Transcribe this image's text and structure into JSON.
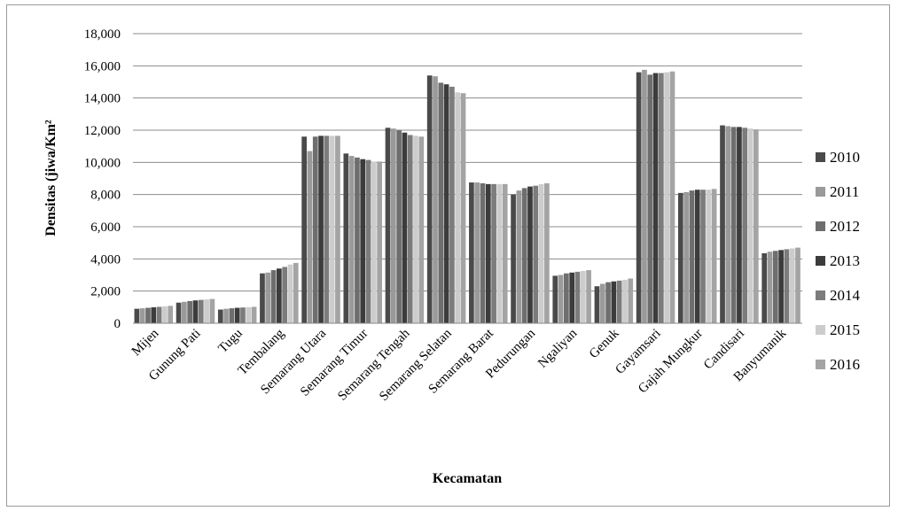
{
  "chart_data": {
    "type": "bar",
    "xlabel": "Kecamatan",
    "ylabel": "Densitas (jiwa/Km²",
    "ylim": [
      0,
      18000
    ],
    "yticks": [
      "0",
      "2,000",
      "4,000",
      "6,000",
      "8,000",
      "10,000",
      "12,000",
      "14,000",
      "16,000",
      "18,000"
    ],
    "grid": true,
    "legend_position": "right",
    "categories": [
      "Mijen",
      "Gunung Pati",
      "Tugu",
      "Tembalang",
      "Semarang Utara",
      "Semarang Timur",
      "Semarang Tengah",
      "Semarang Selatan",
      "Semarang Barat",
      "Pedurungan",
      "Ngaliyan",
      "Genuk",
      "Gayamsari",
      "Gajah Mungkur",
      "Candisari",
      "Banyumanik"
    ],
    "series": [
      {
        "name": "2010",
        "color": "#4a4a4a",
        "values": [
          900,
          1280,
          850,
          3100,
          11600,
          10550,
          12150,
          15400,
          8750,
          8000,
          2950,
          2300,
          15600,
          8100,
          12300,
          4350
        ]
      },
      {
        "name": "2011",
        "color": "#9a9a9a",
        "values": [
          930,
          1330,
          900,
          3150,
          10700,
          10400,
          12100,
          15350,
          8750,
          8250,
          3000,
          2450,
          15750,
          8150,
          12250,
          4450
        ]
      },
      {
        "name": "2012",
        "color": "#6e6e6e",
        "values": [
          960,
          1380,
          930,
          3300,
          11600,
          10300,
          12000,
          14950,
          8700,
          8400,
          3100,
          2550,
          15450,
          8250,
          12200,
          4500
        ]
      },
      {
        "name": "2013",
        "color": "#3c3c3c",
        "values": [
          990,
          1420,
          960,
          3400,
          11650,
          10200,
          11850,
          14850,
          8650,
          8500,
          3150,
          2600,
          15550,
          8300,
          12200,
          4550
        ]
      },
      {
        "name": "2014",
        "color": "#7c7c7c",
        "values": [
          1020,
          1450,
          980,
          3500,
          11650,
          10150,
          11700,
          14700,
          8650,
          8550,
          3200,
          2650,
          15550,
          8300,
          12150,
          4600
        ]
      },
      {
        "name": "2015",
        "color": "#cccccc",
        "values": [
          1050,
          1480,
          1000,
          3650,
          11650,
          10050,
          11650,
          14350,
          8650,
          8650,
          3250,
          2700,
          15600,
          8300,
          12100,
          4650
        ]
      },
      {
        "name": "2016",
        "color": "#a4a4a4",
        "values": [
          1080,
          1510,
          1020,
          3750,
          11650,
          10050,
          11600,
          14300,
          8650,
          8700,
          3300,
          2780,
          15650,
          8350,
          12050,
          4700
        ]
      }
    ]
  }
}
